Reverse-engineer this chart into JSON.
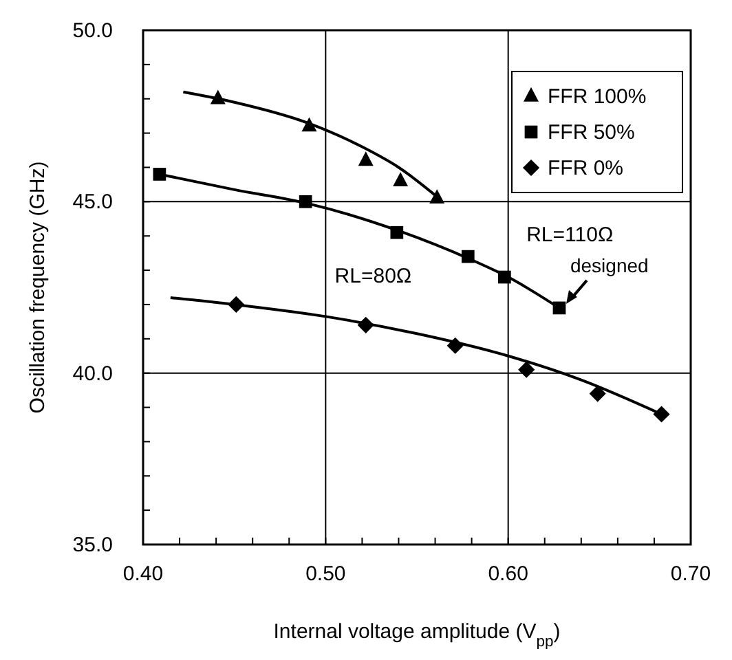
{
  "chart_data": {
    "type": "scatter",
    "xlabel": "Internal voltage amplitude (V$_{pp}$)",
    "ylabel": "Oscillation frequency (GHz)",
    "xlim": [
      0.4,
      0.7
    ],
    "ylim": [
      35,
      50
    ],
    "xticks": [
      {
        "value": 0.4,
        "label": "0.40"
      },
      {
        "value": 0.42,
        "label": null
      },
      {
        "value": 0.44,
        "label": null
      },
      {
        "value": 0.46,
        "label": null
      },
      {
        "value": 0.48,
        "label": null
      },
      {
        "value": 0.5,
        "label": "0.50"
      },
      {
        "value": 0.52,
        "label": null
      },
      {
        "value": 0.54,
        "label": null
      },
      {
        "value": 0.56,
        "label": null
      },
      {
        "value": 0.58,
        "label": null
      },
      {
        "value": 0.6,
        "label": "0.60"
      },
      {
        "value": 0.62,
        "label": null
      },
      {
        "value": 0.64,
        "label": null
      },
      {
        "value": 0.66,
        "label": null
      },
      {
        "value": 0.68,
        "label": null
      },
      {
        "value": 0.7,
        "label": "0.70"
      }
    ],
    "yticks": [
      {
        "value": 35,
        "label": "35.0"
      },
      {
        "value": 36,
        "label": null
      },
      {
        "value": 37,
        "label": null
      },
      {
        "value": 38,
        "label": null
      },
      {
        "value": 39,
        "label": null
      },
      {
        "value": 40,
        "label": "40.0"
      },
      {
        "value": 41,
        "label": null
      },
      {
        "value": 42,
        "label": null
      },
      {
        "value": 43,
        "label": null
      },
      {
        "value": 44,
        "label": null
      },
      {
        "value": 45,
        "label": "45.0"
      },
      {
        "value": 46,
        "label": null
      },
      {
        "value": 47,
        "label": null
      },
      {
        "value": 48,
        "label": null
      },
      {
        "value": 49,
        "label": null
      },
      {
        "value": 50,
        "label": "50.0"
      }
    ],
    "grid": true,
    "legend": "top right",
    "series": [
      {
        "name": "FFR 100%",
        "color": "#000000",
        "marker": "triangle",
        "x": [
          0.441,
          0.491,
          0.522,
          0.541,
          0.561
        ],
        "values": [
          48.0,
          47.2,
          46.2,
          45.6,
          45.1
        ]
      },
      {
        "name": "FFR 50%",
        "color": "#000000",
        "marker": "square",
        "x": [
          0.409,
          0.489,
          0.539,
          0.578,
          0.598,
          0.628
        ],
        "values": [
          45.8,
          45.0,
          44.1,
          43.4,
          42.8,
          41.9
        ]
      },
      {
        "name": "FFR 0%",
        "color": "#000000",
        "marker": "diamond",
        "x": [
          0.451,
          0.522,
          0.571,
          0.61,
          0.649,
          0.684
        ],
        "values": [
          42.0,
          41.4,
          40.8,
          40.1,
          39.4,
          38.8
        ]
      },
      {
        "type": "line",
        "color": "#000000",
        "x": [
          0.422,
          0.45,
          0.49,
          0.52,
          0.54,
          0.562
        ],
        "values": [
          48.2,
          47.9,
          47.3,
          46.6,
          46.0,
          45.1
        ]
      },
      {
        "type": "line",
        "color": "#000000",
        "x": [
          0.409,
          0.45,
          0.49,
          0.54,
          0.58,
          0.6,
          0.628
        ],
        "values": [
          45.8,
          45.35,
          44.95,
          44.15,
          43.3,
          42.8,
          41.9
        ]
      },
      {
        "type": "line",
        "color": "#000000",
        "x": [
          0.415,
          0.45,
          0.5,
          0.55,
          0.6,
          0.64,
          0.684
        ],
        "values": [
          42.2,
          42.0,
          41.65,
          41.15,
          40.5,
          39.8,
          38.8
        ]
      }
    ],
    "annotations": [
      "RL=80Ω",
      "RL=110Ω",
      {
        "text": "designed",
        "x": 0.628,
        "y": 41.9
      }
    ]
  }
}
